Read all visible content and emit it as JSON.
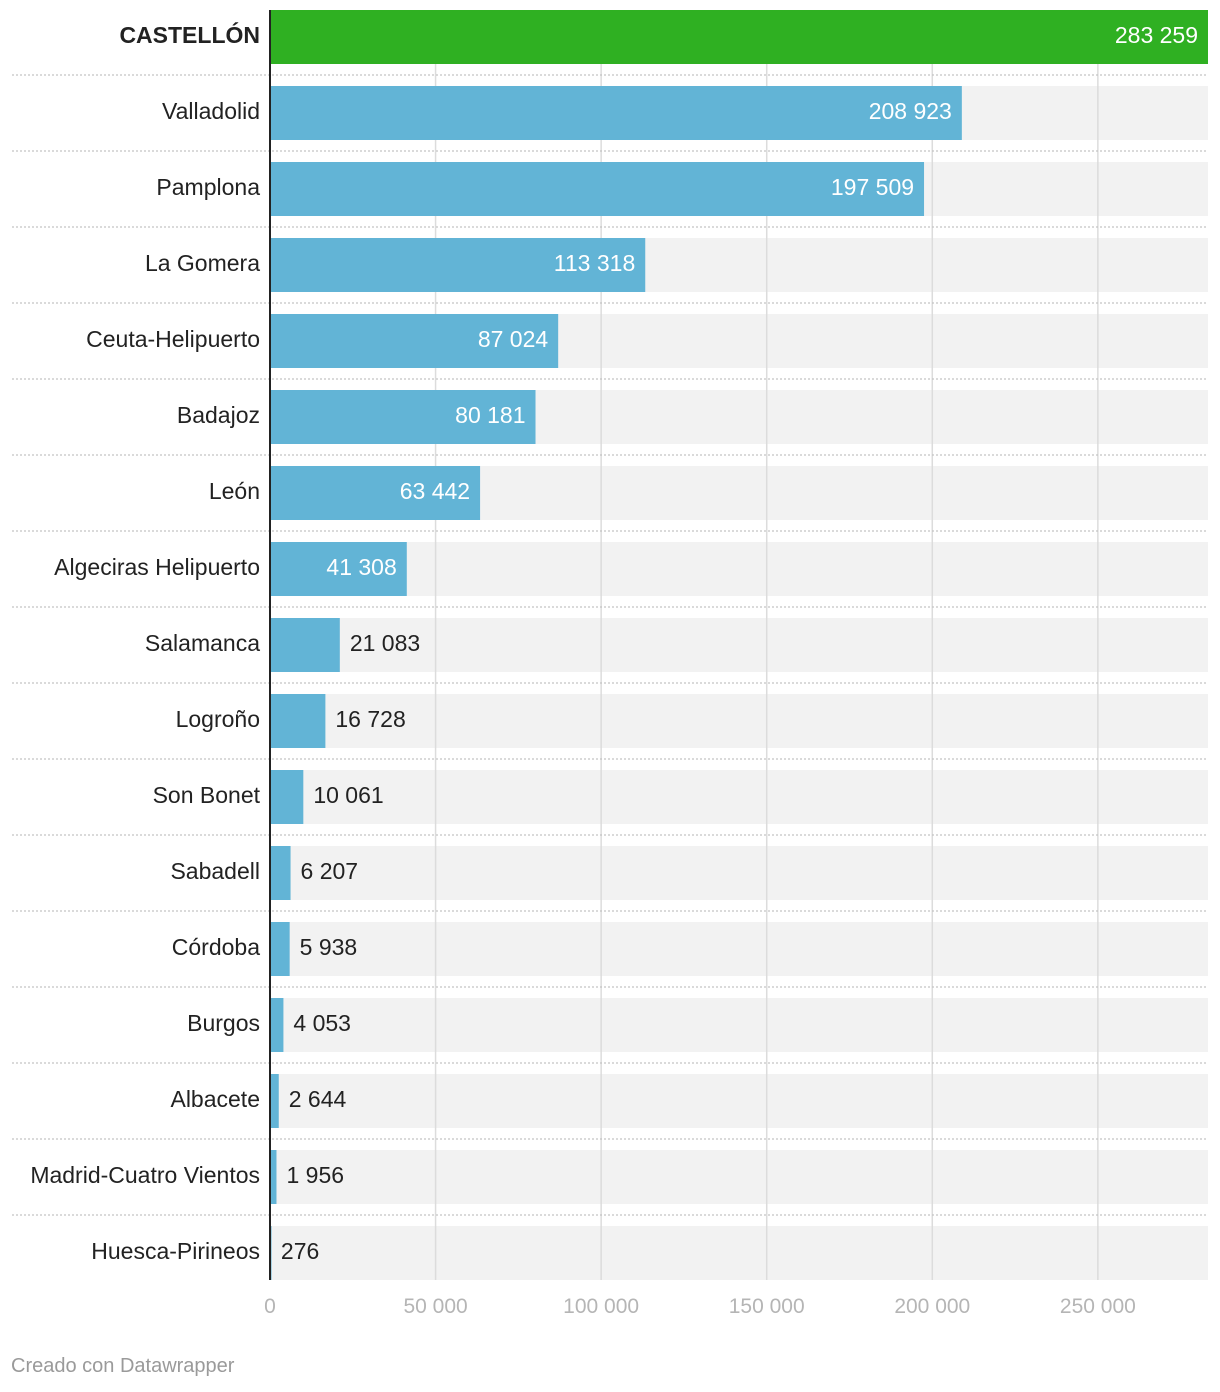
{
  "chart_data": {
    "type": "bar",
    "orientation": "horizontal",
    "categories": [
      "CASTELLÓN",
      "Valladolid",
      "Pamplona",
      "La Gomera",
      "Ceuta-Helipuerto",
      "Badajoz",
      "León",
      "Algeciras Helipuerto",
      "Salamanca",
      "Logroño",
      "Son Bonet",
      "Sabadell",
      "Córdoba",
      "Burgos",
      "Albacete",
      "Madrid-Cuatro Vientos",
      "Huesca-Pirineos"
    ],
    "values": [
      283259,
      208923,
      197509,
      113318,
      87024,
      80181,
      63442,
      41308,
      21083,
      16728,
      10061,
      6207,
      5938,
      4053,
      2644,
      1956,
      276
    ],
    "value_labels": [
      "283 259",
      "208 923",
      "197 509",
      "113 318",
      "87 024",
      "80 181",
      "63 442",
      "41 308",
      "21 083",
      "16 728",
      "10 061",
      "6 207",
      "5 938",
      "4 053",
      "2 644",
      "1 956",
      "276"
    ],
    "highlight": "CASTELLÓN",
    "xlim": [
      0,
      283259
    ],
    "ticks": [
      0,
      50000,
      100000,
      150000,
      200000,
      250000
    ],
    "tick_labels": [
      "0",
      "50 000",
      "100 000",
      "150 000",
      "200 000",
      "250 000"
    ],
    "grid": true,
    "colors": {
      "highlight": "#2fb022",
      "bar": "#62b4d6",
      "track": "#f2f2f2",
      "grid": "#dcdcdc",
      "axis": "#222222",
      "label_inside": "#ffffff",
      "label_outside": "#222222"
    }
  },
  "footer": {
    "credit": "Creado con Datawrapper"
  }
}
